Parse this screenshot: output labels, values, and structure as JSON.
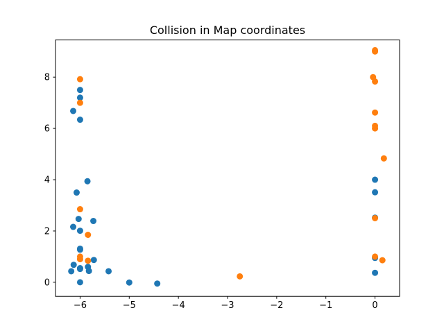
{
  "chart_data": {
    "type": "scatter",
    "title": "Collision in Map coordinates",
    "xlabel": "",
    "ylabel": "",
    "xlim": [
      -6.5,
      0.5
    ],
    "ylim": [
      -0.55,
      9.45
    ],
    "x_ticks": [
      -6,
      -5,
      -4,
      -3,
      -2,
      -1,
      0
    ],
    "y_ticks": [
      0,
      2,
      4,
      6,
      8
    ],
    "x_tick_labels": [
      "−6",
      "−5",
      "−4",
      "−3",
      "−2",
      "−1",
      "0"
    ],
    "y_tick_labels": [
      "0",
      "2",
      "4",
      "6",
      "8"
    ],
    "grid": false,
    "legend": "none",
    "series": [
      {
        "color": "#1f77b4",
        "points": [
          [
            -6.18,
            0.43
          ],
          [
            -6.13,
            0.68
          ],
          [
            -6.14,
            2.16
          ],
          [
            -6.14,
            6.68
          ],
          [
            -6.07,
            3.5
          ],
          [
            -6.03,
            2.47
          ],
          [
            -6.0,
            0.0
          ],
          [
            -6.0,
            0.52
          ],
          [
            -6.0,
            0.55
          ],
          [
            -6.0,
            1.27
          ],
          [
            -6.0,
            1.31
          ],
          [
            -6.0,
            2.01
          ],
          [
            -6.0,
            6.34
          ],
          [
            -6.0,
            7.2
          ],
          [
            -6.0,
            7.5
          ],
          [
            -5.85,
            3.94
          ],
          [
            -5.84,
            0.6
          ],
          [
            -5.82,
            0.44
          ],
          [
            -5.73,
            2.39
          ],
          [
            -5.72,
            0.87
          ],
          [
            -5.42,
            0.43
          ],
          [
            -5.0,
            -0.01
          ],
          [
            -4.43,
            -0.05
          ],
          [
            0.0,
            0.37
          ],
          [
            0.0,
            0.95
          ],
          [
            0.0,
            2.52
          ],
          [
            0.0,
            3.51
          ],
          [
            0.0,
            4.0
          ]
        ]
      },
      {
        "color": "#ff7f0e",
        "points": [
          [
            -6.0,
            0.9
          ],
          [
            -6.0,
            1.0
          ],
          [
            -6.0,
            2.85
          ],
          [
            -6.0,
            7.0
          ],
          [
            -6.0,
            7.92
          ],
          [
            -5.84,
            1.85
          ],
          [
            -5.84,
            0.84
          ],
          [
            -2.75,
            0.23
          ],
          [
            -0.04,
            8.0
          ],
          [
            0.0,
            1.0
          ],
          [
            0.0,
            2.5
          ],
          [
            0.0,
            6.0
          ],
          [
            0.0,
            6.1
          ],
          [
            0.0,
            6.62
          ],
          [
            0.0,
            7.83
          ],
          [
            0.0,
            9.0
          ],
          [
            0.0,
            9.05
          ],
          [
            0.15,
            0.86
          ],
          [
            0.18,
            4.83
          ]
        ]
      }
    ]
  }
}
